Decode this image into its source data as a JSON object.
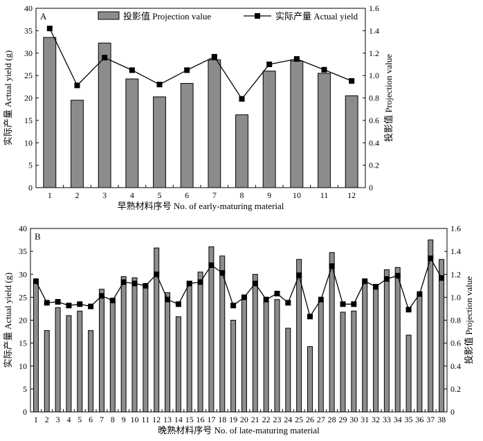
{
  "chart_data": [
    {
      "panel": "A",
      "type": "bar",
      "xlabel": "早熟材料序号 No. of early-maturing material",
      "ylabel": "实际产量 Actual yield (g)",
      "y2label": "投影值 Projection value",
      "ylim": [
        0,
        40
      ],
      "yticks": [
        0,
        5,
        10,
        15,
        20,
        25,
        30,
        35,
        40
      ],
      "y2lim": [
        0,
        1.6
      ],
      "y2ticks": [
        "0",
        "0.2",
        "0.4",
        "0.6",
        "0.8",
        "1.0",
        "1.2",
        "1.4",
        "1.6"
      ],
      "legend": {
        "position": "top",
        "bar": "投影值 Projection value",
        "line": "实际产量 Actual yield"
      },
      "categories": [
        "1",
        "2",
        "3",
        "4",
        "5",
        "6",
        "7",
        "8",
        "9",
        "10",
        "11",
        "12"
      ],
      "series": [
        {
          "name": "投影值 Projection value",
          "type": "bar",
          "axis": "right",
          "color": "#8c8c8c",
          "values": [
            1.34,
            0.78,
            1.29,
            0.97,
            0.81,
            0.93,
            1.14,
            0.65,
            1.04,
            1.13,
            1.02,
            0.82
          ]
        },
        {
          "name": "实际产量 Actual yield",
          "type": "line",
          "axis": "left",
          "color": "#000000",
          "values": [
            35.5,
            22.8,
            29.0,
            26.2,
            23.0,
            26.2,
            29.2,
            19.8,
            27.5,
            28.7,
            26.3,
            23.8
          ]
        }
      ]
    },
    {
      "panel": "B",
      "type": "bar",
      "xlabel": "晚熟材料序号 No. of late-maturing material",
      "ylabel": "实际产量 Actual yield (g)",
      "y2label": "投影值 Projection value",
      "ylim": [
        0,
        40
      ],
      "yticks": [
        0,
        5,
        10,
        15,
        20,
        25,
        30,
        35,
        40
      ],
      "y2lim": [
        0,
        1.6
      ],
      "y2ticks": [
        "0",
        "0.2",
        "0.4",
        "0.6",
        "0.8",
        "1.0",
        "1.2",
        "1.4",
        "1.6"
      ],
      "categories": [
        "1",
        "2",
        "3",
        "4",
        "5",
        "6",
        "7",
        "8",
        "9",
        "10",
        "11",
        "12",
        "13",
        "14",
        "15",
        "16",
        "17",
        "18",
        "19",
        "20",
        "21",
        "22",
        "23",
        "24",
        "25",
        "26",
        "27",
        "28",
        "29",
        "30",
        "31",
        "32",
        "33",
        "34",
        "35",
        "36",
        "37",
        "38"
      ],
      "series": [
        {
          "name": "投影值 Projection value",
          "type": "bar",
          "axis": "right",
          "color": "#8c8c8c",
          "values": [
            1.14,
            0.71,
            0.91,
            0.84,
            0.88,
            0.71,
            1.07,
            0.98,
            1.18,
            1.17,
            1.12,
            1.43,
            1.04,
            0.83,
            1.14,
            1.22,
            1.44,
            1.36,
            0.8,
            1.0,
            1.2,
            0.96,
            0.98,
            0.73,
            1.33,
            0.57,
            0.96,
            1.39,
            0.87,
            0.88,
            1.12,
            1.07,
            1.24,
            1.26,
            0.67,
            1.01,
            1.5,
            1.33
          ]
        },
        {
          "name": "实际产量 Actual yield",
          "type": "line",
          "axis": "left",
          "color": "#000000",
          "values": [
            28.5,
            23.8,
            24.0,
            23.2,
            23.5,
            23.0,
            25.3,
            24.3,
            28.3,
            28.0,
            27.5,
            30.0,
            24.5,
            23.5,
            28.0,
            28.3,
            32.0,
            30.3,
            23.2,
            25.0,
            28.0,
            24.5,
            25.8,
            23.8,
            29.8,
            20.8,
            24.5,
            31.8,
            23.5,
            23.5,
            28.5,
            27.3,
            29.0,
            29.7,
            22.3,
            25.7,
            33.5,
            29.2
          ]
        }
      ]
    }
  ],
  "panels": [
    {
      "label": "A"
    },
    {
      "label": "B"
    }
  ]
}
